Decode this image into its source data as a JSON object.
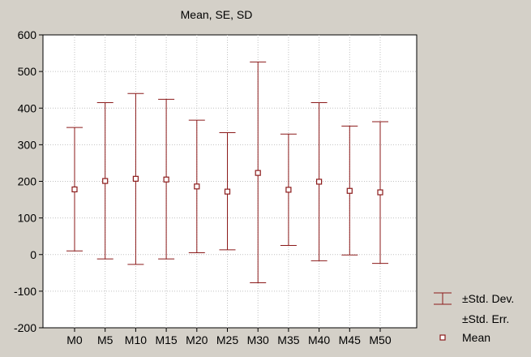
{
  "colors": {
    "background": "#d4d0c8",
    "plot_background": "#ffffff",
    "series": "#8b1a1a",
    "grid": "#c0c0c0",
    "axis": "#000000"
  },
  "chart_data": {
    "type": "errorbar",
    "title": "Mean, SE, SD",
    "categories": [
      "M0",
      "M5",
      "M10",
      "M15",
      "M20",
      "M25",
      "M30",
      "M35",
      "M40",
      "M45",
      "M50"
    ],
    "series": [
      {
        "name": "Mean",
        "values": [
          178,
          201,
          207,
          205,
          186,
          172,
          223,
          177,
          199,
          174,
          170
        ]
      },
      {
        "name": "±Std. Dev.",
        "lower": [
          10,
          -12,
          -27,
          -12,
          5,
          13,
          -77,
          25,
          -17,
          -1,
          -24
        ],
        "upper": [
          347,
          415,
          440,
          424,
          367,
          333,
          526,
          329,
          415,
          351,
          363
        ]
      },
      {
        "name": "±Std. Err.",
        "lower": [
          178,
          201,
          207,
          205,
          186,
          172,
          223,
          177,
          199,
          174,
          170
        ],
        "upper": [
          178,
          201,
          207,
          205,
          186,
          172,
          223,
          177,
          199,
          174,
          170
        ]
      }
    ],
    "ylim": [
      -200,
      600
    ],
    "yticks": [
      -200,
      -100,
      0,
      100,
      200,
      300,
      400,
      500,
      600
    ],
    "grid": true,
    "legend_position": "bottom-right"
  },
  "legend": {
    "items": [
      {
        "label": "±Std. Dev.",
        "icon": "errorbar-icon"
      },
      {
        "label": "±Std. Err.",
        "icon": "none"
      },
      {
        "label": "Mean",
        "icon": "square-marker-icon"
      }
    ]
  }
}
